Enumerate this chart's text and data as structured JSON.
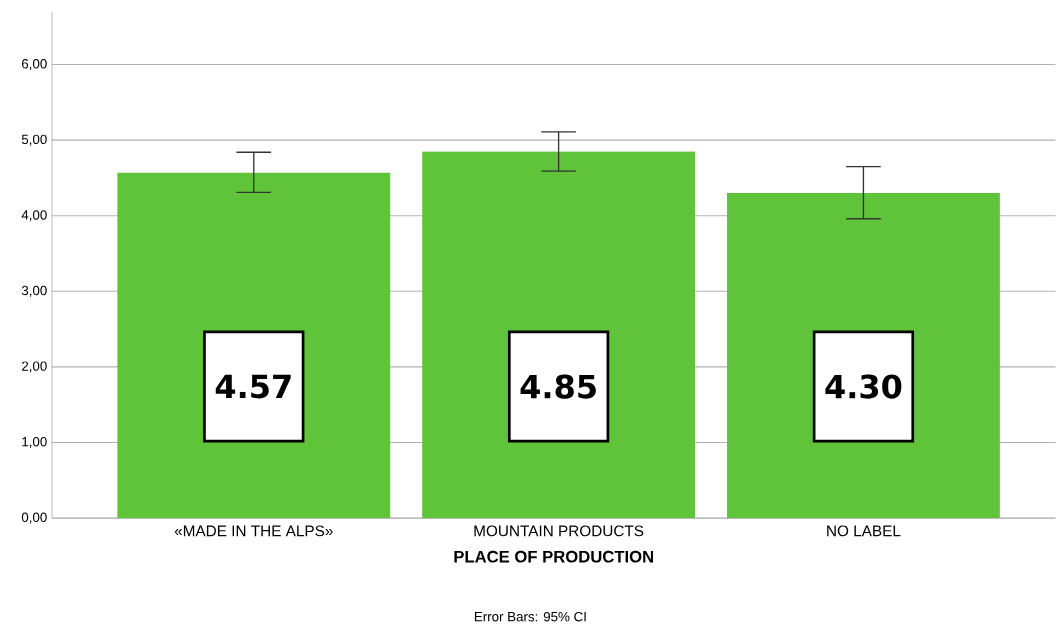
{
  "chart_data": {
    "type": "bar",
    "categories": [
      "«MADE IN THE ALPS»",
      "MOUNTAIN PRODUCTS",
      "NO LABEL"
    ],
    "values": [
      4.57,
      4.85,
      4.3
    ],
    "errors": [
      [
        4.31,
        4.84
      ],
      [
        4.59,
        5.11
      ],
      [
        3.96,
        4.65
      ]
    ],
    "value_labels": [
      "4.57",
      "4.85",
      "4.30"
    ],
    "color": "#5fc43a",
    "xlabel": "PLACE OF PRODUCTION",
    "annotations": [
      "Error Bars: 95% CI"
    ],
    "ylim": [
      0,
      6.7
    ],
    "yticks": [
      {
        "value": 0,
        "label": "0,00"
      },
      {
        "value": 1,
        "label": "1,00"
      },
      {
        "value": 2,
        "label": "2,00"
      },
      {
        "value": 3,
        "label": "3,00"
      },
      {
        "value": 4,
        "label": "4,00"
      },
      {
        "value": 5,
        "label": "5,00"
      },
      {
        "value": 6,
        "label": "6,00"
      }
    ],
    "grid": "y"
  }
}
